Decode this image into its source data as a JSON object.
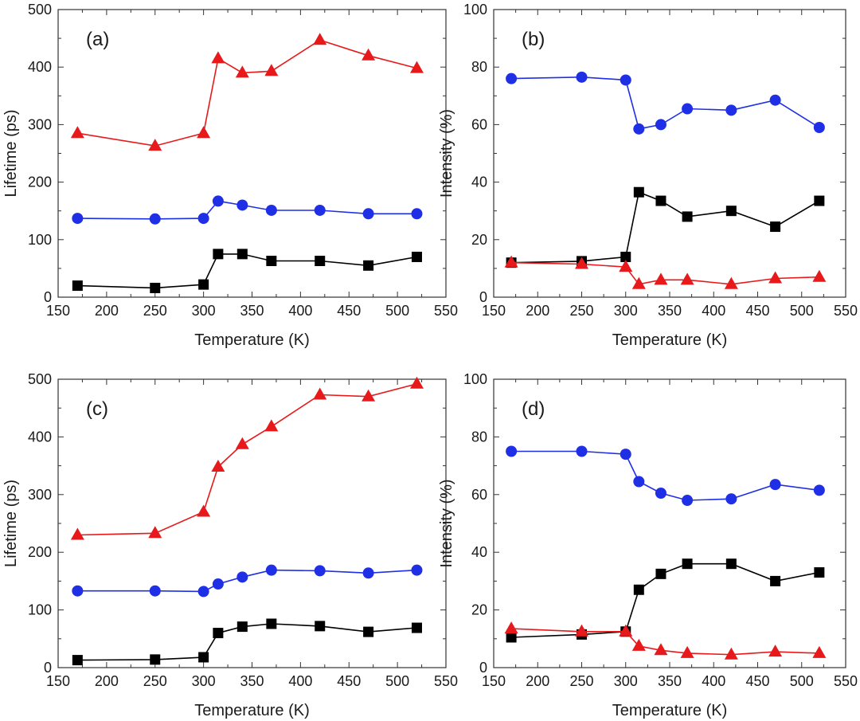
{
  "colors": {
    "black": "#000000",
    "blue": "#1f2fe6",
    "red": "#e8191b",
    "frame": "#333333"
  },
  "chart_data": [
    {
      "type": "line",
      "panel": "(a)",
      "xlabel": "Temperature (K)",
      "ylabel": "Lifetime (ps)",
      "xlim": [
        150,
        550
      ],
      "ylim": [
        0,
        500
      ],
      "xticks": [
        150,
        200,
        250,
        300,
        350,
        400,
        450,
        500,
        550
      ],
      "yticks": [
        0,
        100,
        200,
        300,
        400,
        500
      ],
      "x": [
        170,
        250,
        300,
        315,
        340,
        370,
        420,
        470,
        520
      ],
      "series": [
        {
          "name": "triangle-red",
          "color": "#e8191b",
          "marker": "triangle",
          "values": [
            285,
            263,
            285,
            415,
            390,
            393,
            447,
            420,
            398
          ]
        },
        {
          "name": "circle-blue",
          "color": "#1f2fe6",
          "marker": "circle",
          "values": [
            137,
            136,
            137,
            167,
            160,
            151,
            151,
            145,
            145
          ]
        },
        {
          "name": "square-black",
          "color": "#000000",
          "marker": "square",
          "values": [
            20,
            16,
            22,
            75,
            75,
            63,
            63,
            55,
            70
          ]
        }
      ]
    },
    {
      "type": "line",
      "panel": "(b)",
      "xlabel": "Temperature (K)",
      "ylabel": "Intensity (%)",
      "xlim": [
        150,
        550
      ],
      "ylim": [
        0,
        100
      ],
      "xticks": [
        150,
        200,
        250,
        300,
        350,
        400,
        450,
        500,
        550
      ],
      "yticks": [
        0,
        20,
        40,
        60,
        80,
        100
      ],
      "x": [
        170,
        250,
        300,
        315,
        340,
        370,
        420,
        470,
        520
      ],
      "series": [
        {
          "name": "circle-blue",
          "color": "#1f2fe6",
          "marker": "circle",
          "values": [
            76,
            76.5,
            75.5,
            58.5,
            60,
            65.5,
            65,
            68.5,
            59
          ]
        },
        {
          "name": "square-black",
          "color": "#000000",
          "marker": "square",
          "values": [
            12,
            12.5,
            14,
            36.5,
            33.5,
            28,
            30,
            24.5,
            33.5
          ]
        },
        {
          "name": "triangle-red",
          "color": "#e8191b",
          "marker": "triangle",
          "values": [
            12,
            11.5,
            10.5,
            4.5,
            6,
            6,
            4.5,
            6.5,
            7
          ]
        }
      ]
    },
    {
      "type": "line",
      "panel": "(c)",
      "xlabel": "Temperature (K)",
      "ylabel": "Lifetime (ps)",
      "xlim": [
        150,
        550
      ],
      "ylim": [
        0,
        500
      ],
      "xticks": [
        150,
        200,
        250,
        300,
        350,
        400,
        450,
        500,
        550
      ],
      "yticks": [
        0,
        100,
        200,
        300,
        400,
        500
      ],
      "x": [
        170,
        250,
        300,
        315,
        340,
        370,
        420,
        470,
        520
      ],
      "series": [
        {
          "name": "triangle-red",
          "color": "#e8191b",
          "marker": "triangle",
          "values": [
            230,
            233,
            270,
            348,
            387,
            418,
            473,
            470,
            492
          ]
        },
        {
          "name": "circle-blue",
          "color": "#1f2fe6",
          "marker": "circle",
          "values": [
            133,
            133,
            132,
            145,
            157,
            169,
            168,
            164,
            169
          ]
        },
        {
          "name": "square-black",
          "color": "#000000",
          "marker": "square",
          "values": [
            13,
            14,
            18,
            60,
            71,
            76,
            72,
            62,
            69
          ]
        }
      ]
    },
    {
      "type": "line",
      "panel": "(d)",
      "xlabel": "Temperature (K)",
      "ylabel": "Intensity (%)",
      "xlim": [
        150,
        550
      ],
      "ylim": [
        0,
        100
      ],
      "xticks": [
        150,
        200,
        250,
        300,
        350,
        400,
        450,
        500,
        550
      ],
      "yticks": [
        0,
        20,
        40,
        60,
        80,
        100
      ],
      "x": [
        170,
        250,
        300,
        315,
        340,
        370,
        420,
        470,
        520
      ],
      "series": [
        {
          "name": "circle-blue",
          "color": "#1f2fe6",
          "marker": "circle",
          "values": [
            75,
            75,
            74,
            64.5,
            60.5,
            58,
            58.5,
            63.5,
            61.5
          ]
        },
        {
          "name": "square-black",
          "color": "#000000",
          "marker": "square",
          "values": [
            10.5,
            11.5,
            12.5,
            27,
            32.5,
            36,
            36,
            30,
            33
          ]
        },
        {
          "name": "triangle-red",
          "color": "#e8191b",
          "marker": "triangle",
          "values": [
            13.5,
            12.5,
            12.5,
            7.5,
            6,
            5,
            4.5,
            5.5,
            5
          ]
        }
      ]
    }
  ]
}
